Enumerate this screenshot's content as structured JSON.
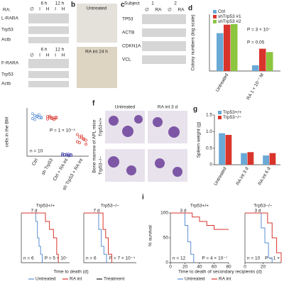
{
  "blot_a": {
    "ra_label": "RA:",
    "top": {
      "times": [
        "6 h",
        "12 h"
      ],
      "lanes": [
        "∅",
        "I",
        "H",
        "I",
        "H"
      ],
      "rows": [
        "L-RARA",
        "Trp53",
        "Actb"
      ]
    },
    "bottom": {
      "times": [
        "6 h",
        "12 h"
      ],
      "lanes": [
        "∅",
        "I",
        "H",
        "I",
        "H"
      ],
      "rows": [
        "F-RARA",
        "Trp53",
        "Actb"
      ]
    }
  },
  "panel_b": {
    "label": "b",
    "images": [
      "Untreated",
      "RA int 24 h"
    ]
  },
  "panel_c": {
    "label": "c",
    "subject_label": "Subject",
    "subjects": [
      "1",
      "2"
    ],
    "lanes": [
      "∅",
      "RA",
      "∅",
      "RA"
    ],
    "rows": [
      "TP53",
      "ACTB",
      "CDKN1A",
      "VCL"
    ]
  },
  "panel_d": {
    "label": "d",
    "type": "bar",
    "y_label": "Colony numbers (log scale)",
    "log": true,
    "ylim": [
      1,
      1000
    ],
    "categories": [
      "Untreated",
      "RA 1 × 10⁻⁷ M"
    ],
    "series": [
      {
        "name": "Ctrl",
        "color": "#6aa9d6",
        "values": [
          100,
          2
        ]
      },
      {
        "name": "shTrp53 #1",
        "color": "#d9342b",
        "values": [
          280,
          15
        ]
      },
      {
        "name": "shTrp53 #2",
        "color": "#8cc63f",
        "values": [
          300,
          10
        ]
      }
    ],
    "annotations": [
      "P = 3 × 10⁻",
      "P = 0.05"
    ]
  },
  "panel_e": {
    "type": "scatter",
    "y_label": "cells in the BM",
    "n_label": "n = 10",
    "p_label": "P = 1 × 10⁻⁵",
    "ylim": [
      0,
      100
    ],
    "categories": [
      "Ctrl",
      "sh Trp53",
      "Ctrl + RA int",
      "sh Trp53 + RA int"
    ],
    "groups": [
      {
        "color": "#5b8fd1",
        "values": [
          88,
          84,
          82,
          80,
          79,
          78,
          76,
          83,
          86,
          81
        ]
      },
      {
        "color": "#d9342b",
        "values": [
          82,
          80,
          78,
          79,
          81,
          77,
          83,
          80,
          76,
          79
        ]
      },
      {
        "color": "#3a3aa8",
        "values": [
          2,
          3,
          4,
          1,
          2,
          5,
          3,
          2,
          4,
          3
        ]
      },
      {
        "color": "#d9342b",
        "values": [
          45,
          40,
          38,
          35,
          33,
          30,
          28,
          42,
          36,
          25
        ]
      }
    ]
  },
  "panel_f": {
    "label": "f",
    "columns": [
      "Untreated",
      "RA int 3 d"
    ],
    "rows": [
      "Trp53+/+",
      "Trp53−/−"
    ],
    "side_label": "Bone marrow of APL mice"
  },
  "panel_g": {
    "label": "g",
    "type": "bar",
    "y_label": "Spleen weight (g)",
    "ylim": [
      0,
      1.5
    ],
    "yticks": [
      0,
      0.5,
      {
        "value": 1,
        "label": "1.0"
      },
      1.5
    ],
    "categories": [
      "Untreated",
      "RA int 3 d",
      "RA int 6 d"
    ],
    "series": [
      {
        "name": "Trp53+/+",
        "color": "#6aa9d6",
        "values": [
          0.95,
          0.35,
          0.28
        ]
      },
      {
        "name": "Trp53−/−",
        "color": "#d9342b",
        "values": [
          0.9,
          0.38,
          0.35
        ]
      }
    ]
  },
  "panel_h": {
    "type": "survival",
    "x_label": "Time to death (d)",
    "xlim": [
      0,
      60
    ],
    "legend": [
      {
        "name": "Untreated",
        "color": "#5b8fd1"
      },
      {
        "name": "RA int",
        "color": "#d9342b"
      },
      {
        "name": "Treatment",
        "color": "#222222"
      }
    ],
    "groups": [
      {
        "title": "Trp53+/+",
        "bracket": "7 d",
        "n_label": "n = 6",
        "p_label": "P = 5 × 10⁻",
        "curves": [
          {
            "x": [
              0,
              18,
              20,
              22,
              24,
              26
            ],
            "y": [
              100,
              83,
              50,
              33,
              17,
              0
            ]
          },
          {
            "x": [
              0,
              30,
              35,
              40,
              44,
              46
            ],
            "y": [
              100,
              83,
              67,
              50,
              17,
              0
            ]
          }
        ]
      },
      {
        "title": "Trp53−/−",
        "bracket": "7 d",
        "n_label": "n = 6",
        "p_label": "P = 7 × 10⁻⁴",
        "curves": [
          {
            "x": [
              0,
              17,
              20,
              23,
              26
            ],
            "y": [
              100,
              67,
              33,
              17,
              0
            ]
          },
          {
            "x": [
              0,
              22,
              25,
              28,
              32
            ],
            "y": [
              100,
              67,
              50,
              17,
              0
            ]
          }
        ]
      }
    ]
  },
  "panel_i": {
    "label": "i",
    "type": "survival",
    "y_label": "% survival",
    "ylim": [
      0,
      100
    ],
    "yticks": [
      0,
      50,
      100
    ],
    "x_label": "Time to death of secondary recipients (d)",
    "legend": [
      {
        "name": "Untreated",
        "color": "#5b8fd1"
      },
      {
        "name": "RA int",
        "color": "#d9342b"
      }
    ],
    "groups": [
      {
        "title": "Trp53+/+",
        "bracket": "3 d",
        "n_label": "n = 12",
        "p_label": "P = 4 × 10⁻⁷",
        "xlim": [
          0,
          80
        ],
        "xticks": [
          0,
          20,
          40,
          60,
          80
        ],
        "curves": [
          {
            "x": [
              0,
              20,
              24,
              28,
              32
            ],
            "y": [
              100,
              75,
              42,
              17,
              0
            ]
          },
          {
            "x": [
              0,
              30,
              40,
              50,
              60,
              80
            ],
            "y": [
              100,
              92,
              83,
              75,
              67,
              67
            ]
          }
        ]
      },
      {
        "title": "Trp53−/−",
        "bracket": "3 d",
        "n_label": "n = 10",
        "p_label": "P = 1 ×",
        "xlim": [
          0,
          40
        ],
        "xticks": [
          0,
          20
        ],
        "curves": [
          {
            "x": [
              0,
              18,
              22,
              26,
              30
            ],
            "y": [
              100,
              70,
              40,
              10,
              0
            ]
          },
          {
            "x": [
              0,
              25,
              30,
              35,
              40
            ],
            "y": [
              100,
              80,
              50,
              20,
              0
            ]
          }
        ]
      }
    ]
  }
}
